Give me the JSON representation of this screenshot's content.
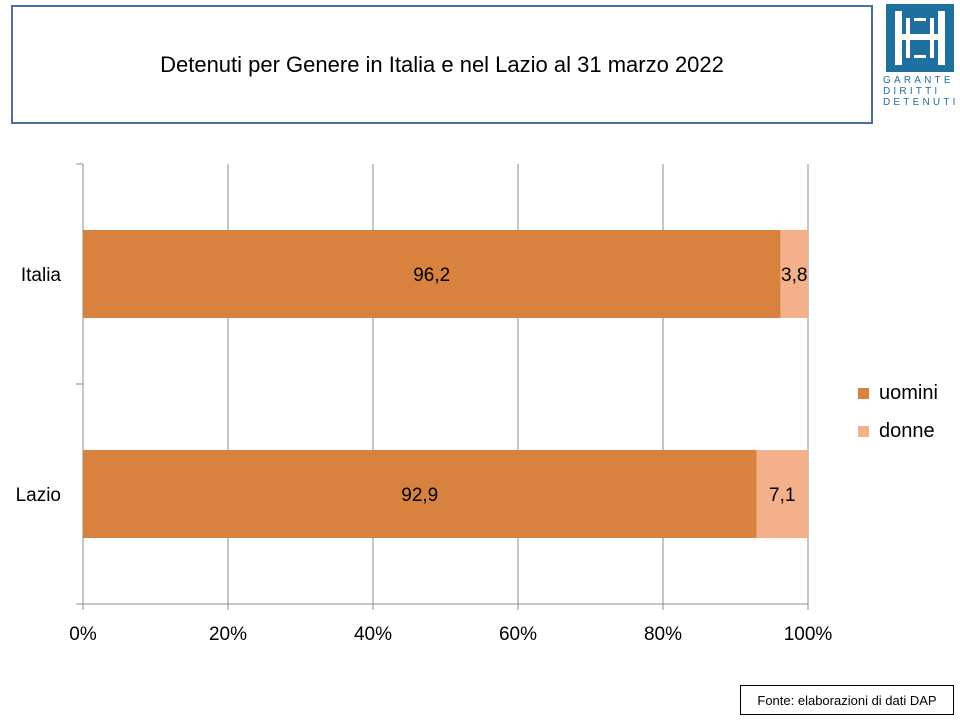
{
  "header": {
    "title": "Detenuti per Genere in Italia e nel Lazio al 31 marzo 2022"
  },
  "logo": {
    "lines": [
      "GARANTE",
      "DIRITTI",
      "DETENUTI"
    ],
    "color": "#1f6f9f"
  },
  "chart_data": {
    "type": "bar",
    "orientation": "horizontal",
    "stacking": "percent",
    "categories": [
      "Italia",
      "Lazio"
    ],
    "series": [
      {
        "name": "uomini",
        "values": [
          96.2,
          92.9
        ],
        "labels": [
          "96,2",
          "92,9"
        ],
        "color": "#d9823f"
      },
      {
        "name": "donne",
        "values": [
          3.8,
          7.1
        ],
        "labels": [
          "3,8",
          "7,1"
        ],
        "color": "#f4b08a"
      }
    ],
    "xaxis": {
      "ticks": [
        0,
        20,
        40,
        60,
        80,
        100
      ],
      "tick_labels": [
        "0%",
        "20%",
        "40%",
        "60%",
        "80%",
        "100%"
      ],
      "xlim": [
        0,
        100
      ]
    },
    "grid": true,
    "legend_position": "right"
  },
  "footer": {
    "source": "Fonte: elaborazioni di dati DAP"
  }
}
